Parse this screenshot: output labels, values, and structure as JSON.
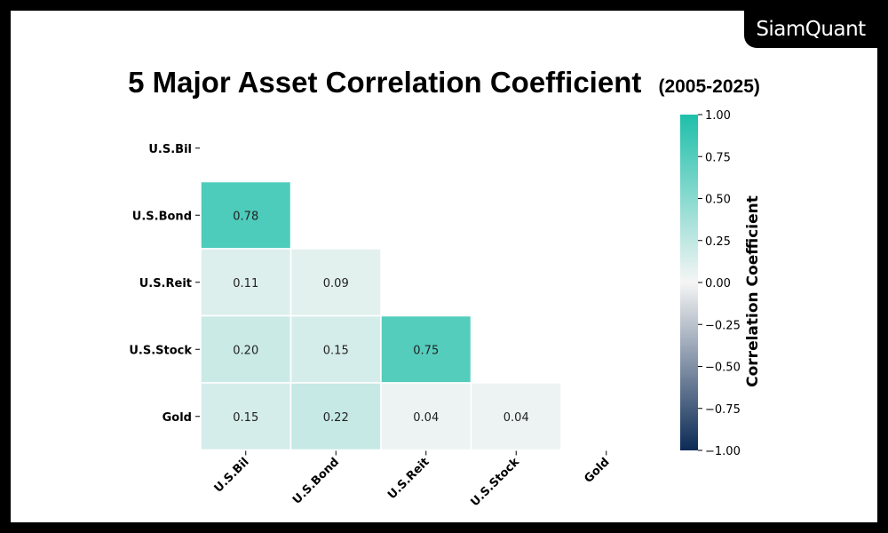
{
  "brand": "SiamQuant",
  "title": {
    "main": "5 Major Asset Correlation Coefficient",
    "period": "(2005-2025)"
  },
  "chart_data": {
    "type": "heatmap",
    "rows": [
      "U.S.Bil",
      "U.S.Bond",
      "U.S.Reit",
      "U.S.Stock",
      "Gold"
    ],
    "columns": [
      "U.S.Bil",
      "U.S.Bond",
      "U.S.Reit",
      "U.S.Stock",
      "Gold"
    ],
    "mask": "lower-triangle-only",
    "values": [
      [
        null,
        null,
        null,
        null,
        null
      ],
      [
        0.78,
        null,
        null,
        null,
        null
      ],
      [
        0.11,
        0.09,
        null,
        null,
        null
      ],
      [
        0.2,
        0.15,
        0.75,
        null,
        null
      ],
      [
        0.15,
        0.22,
        0.04,
        0.04,
        null
      ]
    ],
    "value_labels": [
      [
        null,
        null,
        null,
        null,
        null
      ],
      [
        "0.78",
        null,
        null,
        null,
        null
      ],
      [
        "0.11",
        "0.09",
        null,
        null,
        null
      ],
      [
        "0.20",
        "0.15",
        "0.75",
        null,
        null
      ],
      [
        "0.15",
        "0.22",
        "0.04",
        "0.04",
        null
      ]
    ],
    "colorbar": {
      "label": "Correlation Coefficient",
      "range": [
        -1.0,
        1.0
      ],
      "ticks": [
        1.0,
        0.75,
        0.5,
        0.25,
        0.0,
        -0.25,
        -0.5,
        -0.75,
        -1.0
      ],
      "tick_labels": [
        "1.00",
        "0.75",
        "0.50",
        "0.25",
        "0.00",
        "−0.25",
        "−0.50",
        "−0.75",
        "−1.00"
      ],
      "colors": {
        "positive": "#1ebfaa",
        "zero": "#f5f5f5",
        "negative": "#0b2a55"
      }
    }
  }
}
